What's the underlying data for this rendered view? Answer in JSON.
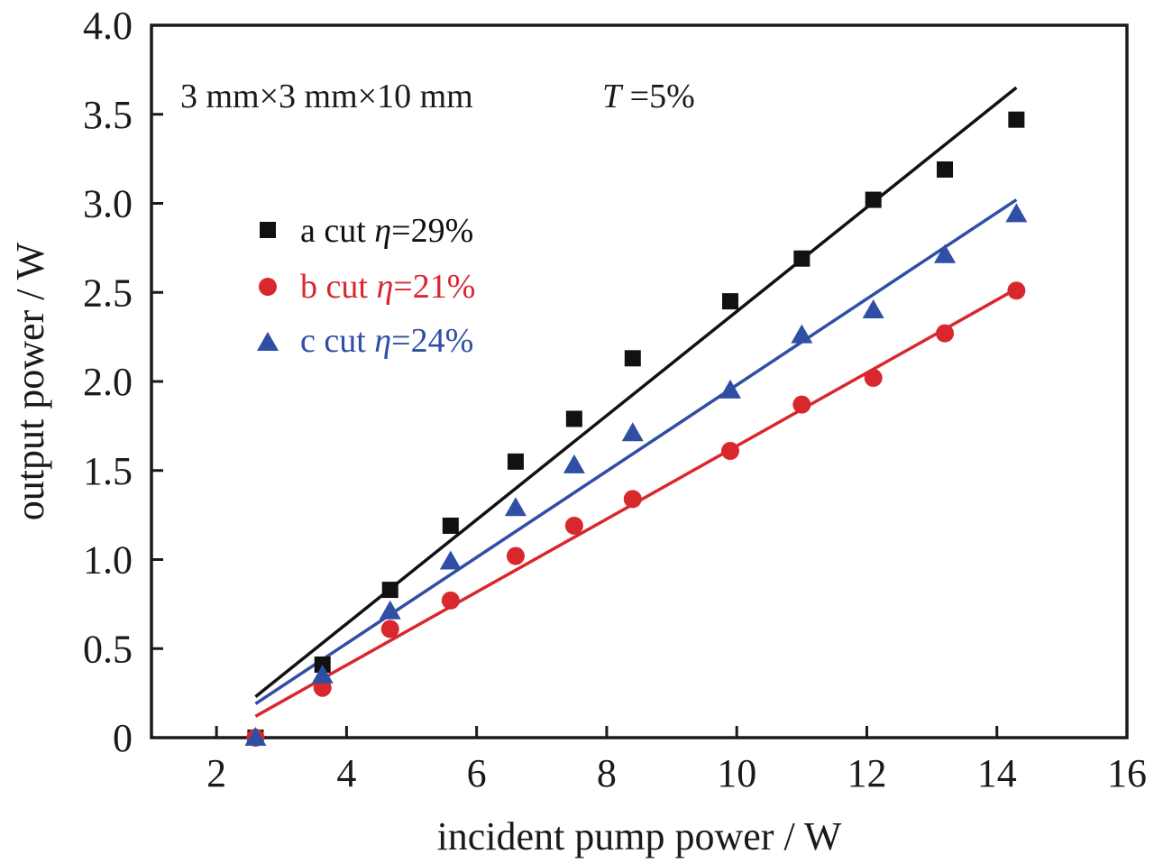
{
  "chart_data": {
    "type": "scatter",
    "title": "",
    "annotation": {
      "text": "3 mm×3 mm×10 mm",
      "param_symbol": "T",
      "param_value": "=5%"
    },
    "xlabel": "incident pump power / W",
    "ylabel": "output power / W",
    "xlim": [
      1,
      16
    ],
    "ylim": [
      0,
      4.0
    ],
    "xticks": [
      2,
      4,
      6,
      8,
      10,
      12,
      14,
      16
    ],
    "xtick_labels": [
      "2",
      "4",
      "6",
      "8",
      "10",
      "12",
      "14",
      "16"
    ],
    "yticks": [
      0,
      0.5,
      1.0,
      1.5,
      2.0,
      2.5,
      3.0,
      3.5,
      4.0
    ],
    "ytick_labels": [
      "0",
      "0.5",
      "1.0",
      "1.5",
      "2.0",
      "2.5",
      "3.0",
      "3.5",
      "4.0"
    ],
    "grid": false,
    "legend_position": "upper-left",
    "x": [
      2.6,
      3.63,
      4.67,
      5.6,
      6.6,
      7.5,
      8.4,
      9.9,
      11.0,
      12.1,
      13.2,
      14.3
    ],
    "series": [
      {
        "name": "a cut",
        "legend_prefix": "a cut ",
        "eta_symbol": "η",
        "eta_value": "=29%",
        "marker": "square",
        "color": "#111111",
        "values": [
          0,
          0.41,
          0.83,
          1.19,
          1.55,
          1.79,
          2.13,
          2.45,
          2.69,
          3.02,
          3.19,
          3.47
        ],
        "fit": {
          "x": [
            2.6,
            14.3
          ],
          "y": [
            0.23,
            3.65
          ]
        }
      },
      {
        "name": "b cut",
        "legend_prefix": "b cut ",
        "eta_symbol": "η",
        "eta_value": "=21%",
        "marker": "circle",
        "color": "#d9272e",
        "values": [
          0,
          0.28,
          0.61,
          0.77,
          1.02,
          1.19,
          1.34,
          1.61,
          1.87,
          2.02,
          2.27,
          2.51
        ],
        "fit": {
          "x": [
            2.6,
            14.3
          ],
          "y": [
            0.12,
            2.52
          ]
        }
      },
      {
        "name": "c cut",
        "legend_prefix": "c cut ",
        "eta_symbol": "η",
        "eta_value": "=24%",
        "marker": "triangle",
        "color": "#2e4fa3",
        "values": [
          0,
          0.35,
          0.71,
          0.99,
          1.29,
          1.53,
          1.71,
          1.95,
          2.26,
          2.4,
          2.71,
          2.94
        ],
        "fit": {
          "x": [
            2.6,
            14.3
          ],
          "y": [
            0.19,
            3.02
          ]
        }
      }
    ]
  }
}
